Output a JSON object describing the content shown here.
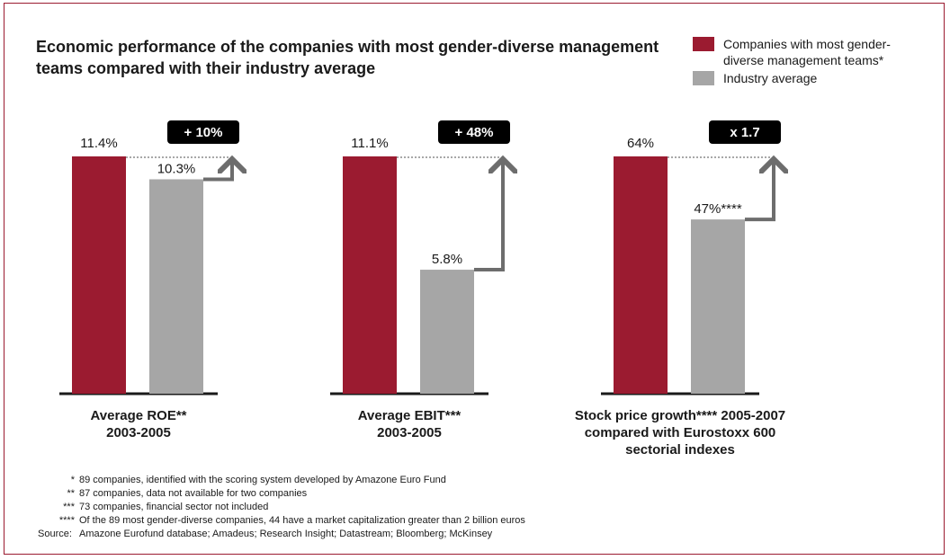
{
  "title": "Economic performance of the companies with most gender-diverse management teams compared with their industry average",
  "legend": {
    "series_a": "Companies with most gender-diverse management teams*",
    "series_b": "Industry average"
  },
  "colors": {
    "series_a": "#9b1b30",
    "series_b": "#a6a6a6",
    "arrow": "#6d6d6d",
    "badge": "#000000"
  },
  "chart_data": [
    {
      "type": "bar",
      "categories": [
        "Companies with most gender-diverse management teams*",
        "Industry average"
      ],
      "values": [
        11.4,
        10.3
      ],
      "data_labels": [
        "11.4%",
        "10.3%"
      ],
      "badge": "+ 10%",
      "xlabel": [
        "Average ROE**",
        "2003-2005"
      ]
    },
    {
      "type": "bar",
      "categories": [
        "Companies with most gender-diverse management teams*",
        "Industry average"
      ],
      "values": [
        11.1,
        5.8
      ],
      "data_labels": [
        "11.1%",
        "5.8%"
      ],
      "badge": "+ 48%",
      "xlabel": [
        "Average EBIT***",
        "2003-2005"
      ]
    },
    {
      "type": "bar",
      "categories": [
        "Companies with most gender-diverse management teams*",
        "Industry average"
      ],
      "values": [
        64,
        47
      ],
      "data_labels": [
        "64%",
        "47%****"
      ],
      "badge": "x 1.7",
      "xlabel": [
        "Stock price growth**** 2005-2007",
        "compared with Eurostoxx 600",
        "sectorial indexes"
      ]
    }
  ],
  "footnotes": [
    {
      "mark": "*",
      "text": "89 companies, identified with the scoring system developed by Amazone Euro Fund"
    },
    {
      "mark": "**",
      "text": "87 companies, data not available for two companies"
    },
    {
      "mark": "***",
      "text": "73 companies, financial sector not included"
    },
    {
      "mark": "****",
      "text": "Of the 89 most gender-diverse companies, 44 have a market capitalization greater than 2 billion euros"
    }
  ],
  "source": {
    "label": "Source:",
    "text": "Amazone Eurofund database; Amadeus; Research Insight; Datastream; Bloomberg; McKinsey"
  }
}
